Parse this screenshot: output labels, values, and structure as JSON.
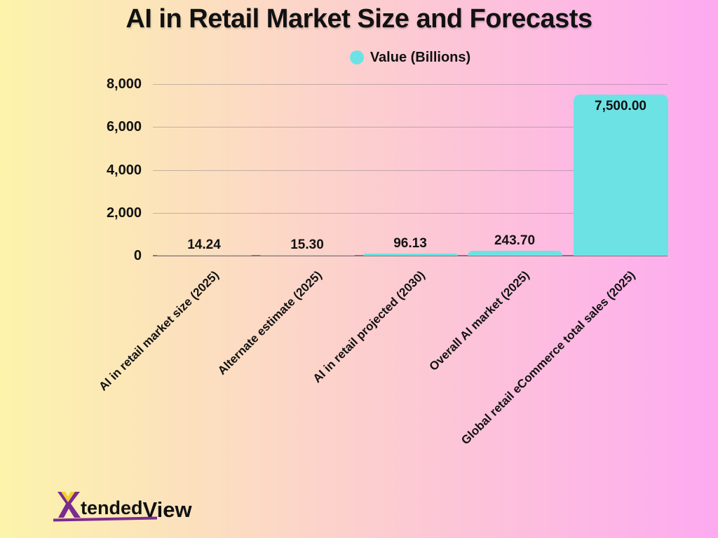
{
  "title": "AI in Retail Market Size and Forecasts",
  "legend": {
    "label": "Value (Billions)",
    "marker_color": "#6de2e4"
  },
  "chart_data": {
    "type": "bar",
    "title": "AI in Retail Market Size and Forecasts",
    "series_name": "Value (Billions)",
    "categories": [
      "AI in retail market size (2025)",
      "Alternate estimate (2025)",
      "AI in retail projected (2030)",
      "Overall AI market (2025)",
      "Global retail eCommerce total sales (2025)"
    ],
    "values": [
      14.24,
      15.3,
      96.13,
      243.7,
      7500.0
    ],
    "value_labels": [
      "14.24",
      "15.30",
      "96.13",
      "243.70",
      "7,500.00"
    ],
    "xlabel": "",
    "ylabel": "",
    "ylim": [
      0,
      8000
    ],
    "yticks": [
      0,
      2000,
      4000,
      6000,
      8000
    ],
    "ytick_labels": [
      "0",
      "2,000",
      "4,000",
      "6,000",
      "8,000"
    ],
    "grid": true,
    "legend_position": "top-center",
    "bar_color": "#6de2e4",
    "label_rotation_deg": 45
  },
  "branding": {
    "logo_x": "X",
    "logo_text_1": "tended",
    "logo_text_2": "View",
    "purple": "#7a2b8f",
    "yellow": "#f2d12e"
  },
  "colors": {
    "background_left": "#fcf4ab",
    "background_right": "#fdaaf1",
    "bar": "#6de2e4",
    "text": "#111111",
    "gridline": "rgba(125,115,122,0.45)"
  }
}
